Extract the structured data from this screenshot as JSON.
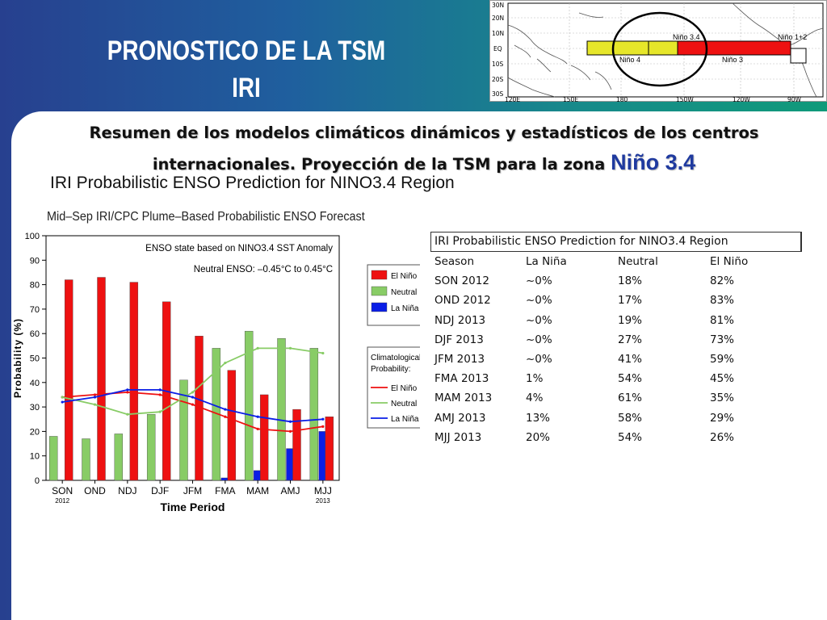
{
  "header": {
    "title_line1": "PRONOSTICO DE LA TSM",
    "title_line2": "IRI"
  },
  "map": {
    "lat_labels": [
      "30N",
      "20N",
      "10N",
      "EQ",
      "10S",
      "20S",
      "30S"
    ],
    "lon_labels": [
      "120E",
      "150E",
      "180",
      "150W",
      "120W",
      "90W"
    ],
    "regions": [
      "Niño 3.4",
      "Niño 4",
      "Niño 3",
      "Niño 1+2"
    ]
  },
  "summary": {
    "line1": "Resumen de los modelos climáticos dinámicos y estadísticos de los centros",
    "line2": "internacionales. Proyección de la TSM para la zona",
    "highlight": "Niño 3.4"
  },
  "subtitle": "IRI Probabilistic ENSO Prediction for NINO3.4 Region",
  "chart_data": {
    "type": "bar",
    "title": "Mid–Sep IRI/CPC Plume–Based Probabilistic ENSO Forecast",
    "xlabel": "Time Period",
    "ylabel": "Probability (%)",
    "ylim": [
      0,
      100
    ],
    "yticks": [
      0,
      10,
      20,
      30,
      40,
      50,
      60,
      70,
      80,
      90,
      100
    ],
    "categories": [
      "SON",
      "OND",
      "NDJ",
      "DJF",
      "JFM",
      "FMA",
      "MAM",
      "AMJ",
      "MJJ"
    ],
    "category_sublabels": [
      "2012",
      "",
      "",
      "",
      "",
      "",
      "",
      "",
      "2013"
    ],
    "annotation_line1": "ENSO state based on NINO3.4 SST Anomaly",
    "annotation_line2": "Neutral ENSO: –0.45°C to 0.45°C",
    "series": [
      {
        "name": "La Niña",
        "color": "#0a1ee6",
        "values": [
          0,
          0,
          0,
          0,
          0,
          1,
          4,
          13,
          20
        ]
      },
      {
        "name": "Neutral",
        "color": "#88cc66",
        "values": [
          18,
          17,
          19,
          27,
          41,
          54,
          61,
          58,
          54
        ]
      },
      {
        "name": "El Niño",
        "color": "#ee1111",
        "values": [
          82,
          83,
          81,
          73,
          59,
          45,
          35,
          29,
          26
        ]
      }
    ],
    "legend_title": "",
    "climatology_title": "Climatological Probability:",
    "climatology": [
      {
        "name": "El Niño",
        "color": "#ee1111",
        "values": [
          34,
          35,
          36,
          35,
          31,
          26,
          21,
          20,
          22
        ]
      },
      {
        "name": "Neutral",
        "color": "#88cc66",
        "values": [
          34,
          31,
          27,
          28,
          36,
          48,
          54,
          54,
          52
        ]
      },
      {
        "name": "La Niña",
        "color": "#0a1ee6",
        "values": [
          32,
          34,
          37,
          37,
          34,
          29,
          26,
          24,
          25
        ]
      }
    ]
  },
  "table": {
    "caption": "IRI Probabilistic ENSO Prediction for NINO3.4 Region",
    "headers": [
      "Season",
      "La Niña",
      "Neutral",
      "El Niño"
    ],
    "rows": [
      [
        "SON 2012",
        "~0%",
        "18%",
        "82%"
      ],
      [
        "OND 2012",
        "~0%",
        "17%",
        "83%"
      ],
      [
        "NDJ 2013",
        "~0%",
        "19%",
        "81%"
      ],
      [
        "DJF 2013",
        "~0%",
        "27%",
        "73%"
      ],
      [
        "JFM 2013",
        "~0%",
        "41%",
        "59%"
      ],
      [
        "FMA 2013",
        "1%",
        "54%",
        "45%"
      ],
      [
        "MAM 2013",
        "4%",
        "61%",
        "35%"
      ],
      [
        "AMJ 2013",
        "13%",
        "58%",
        "29%"
      ],
      [
        "MJJ 2013",
        "20%",
        "54%",
        "26%"
      ]
    ]
  }
}
